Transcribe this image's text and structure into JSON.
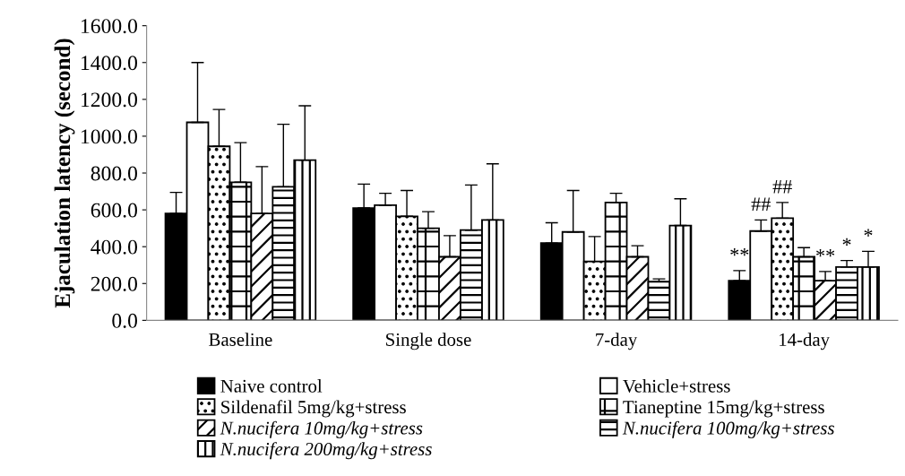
{
  "chart_data": {
    "type": "bar",
    "ylabel": "Ejaculation latency (second)",
    "categories": [
      "Baseline",
      "Single dose",
      "7-day",
      "14-day"
    ],
    "ylim": [
      0,
      1600
    ],
    "yticks": [
      {
        "value": 0,
        "label": "0.0"
      },
      {
        "value": 200,
        "label": "200.0"
      },
      {
        "value": 400,
        "label": "400.0"
      },
      {
        "value": 600,
        "label": "600.0"
      },
      {
        "value": 800,
        "label": "800.0"
      },
      {
        "value": 1000,
        "label": "1000.0"
      },
      {
        "value": 1200,
        "label": "1200.0"
      },
      {
        "value": 1400,
        "label": "1400.0"
      },
      {
        "value": 1600,
        "label": "1600.0"
      }
    ],
    "grid": false,
    "legend": "bottom",
    "series": [
      {
        "name": "Naive control",
        "color": "#000000",
        "values": [
          580,
          610,
          420,
          215
        ],
        "errors": [
          [
            580,
            695
          ],
          [
            610,
            740
          ],
          [
            420,
            530
          ],
          [
            215,
            270
          ]
        ]
      },
      {
        "name": "Vehicle+stress",
        "color": "#ffffff",
        "values": [
          1075,
          625,
          480,
          485
        ],
        "errors": [
          [
            1075,
            1400
          ],
          [
            625,
            690
          ],
          [
            480,
            705
          ],
          [
            485,
            545
          ]
        ]
      },
      {
        "name": "Sildenafil 5mg/kg+stress",
        "color": "#000000",
        "values": [
          945,
          565,
          320,
          555
        ],
        "errors": [
          [
            945,
            1145
          ],
          [
            565,
            705
          ],
          [
            320,
            455
          ],
          [
            555,
            640
          ]
        ]
      },
      {
        "name": "Tianeptine 15mg/kg+stress",
        "color": "#000000",
        "values": [
          750,
          500,
          640,
          345
        ],
        "errors": [
          [
            750,
            965
          ],
          [
            500,
            590
          ],
          [
            640,
            690
          ],
          [
            345,
            395
          ]
        ]
      },
      {
        "name": "N.nucifera 10mg/kg+stress",
        "color": "#000000",
        "values": [
          580,
          345,
          345,
          215
        ],
        "errors": [
          [
            580,
            835
          ],
          [
            345,
            460
          ],
          [
            345,
            405
          ],
          [
            215,
            265
          ]
        ]
      },
      {
        "name": "N.nucifera 100mg/kg+stress",
        "color": "#000000",
        "values": [
          725,
          490,
          210,
          290
        ],
        "errors": [
          [
            725,
            1065
          ],
          [
            490,
            735
          ],
          [
            210,
            225
          ],
          [
            290,
            325
          ]
        ]
      },
      {
        "name": "N.nucifera 200mg/kg+stress",
        "color": "#000000",
        "values": [
          870,
          545,
          515,
          290
        ],
        "errors": [
          [
            870,
            1165
          ],
          [
            545,
            850
          ],
          [
            515,
            660
          ],
          [
            290,
            375
          ]
        ]
      }
    ],
    "annotations": [
      "**",
      "##",
      "##",
      "**",
      "*",
      "*"
    ]
  }
}
